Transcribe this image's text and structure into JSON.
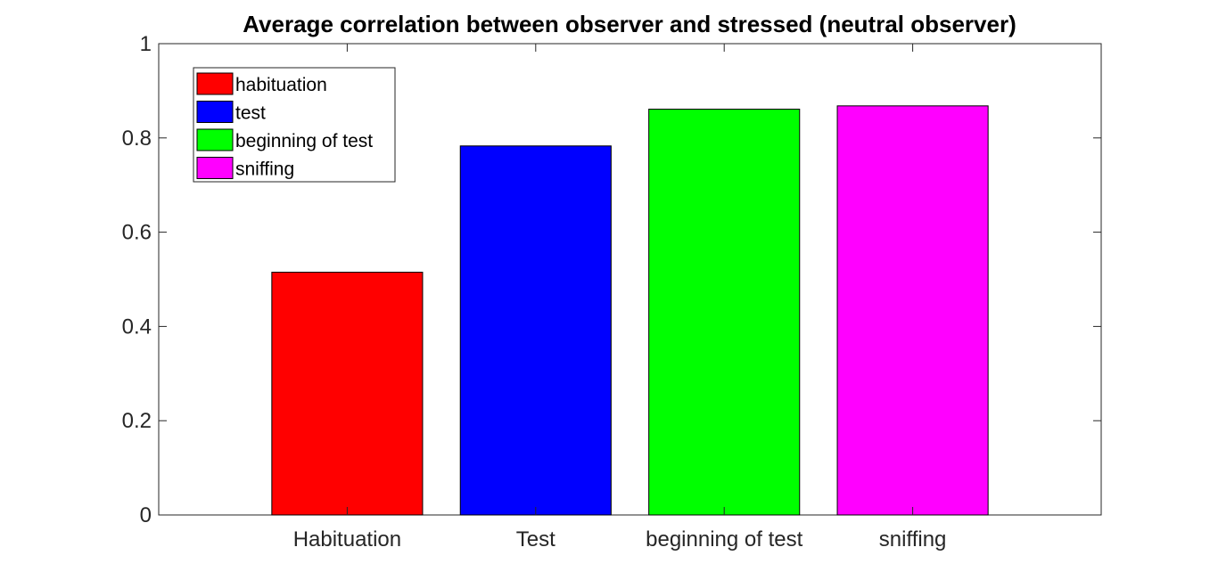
{
  "chart_data": {
    "type": "bar",
    "title": "Average correlation between observer and stressed (neutral observer)",
    "xlabel": "",
    "ylabel": "",
    "categories": [
      "Habituation",
      "Test",
      "beginning of test",
      "sniffing"
    ],
    "values": [
      0.515,
      0.783,
      0.861,
      0.868
    ],
    "colors": [
      "#ff0000",
      "#0000ff",
      "#00ff00",
      "#ff00ff"
    ],
    "ylim": [
      0,
      1
    ],
    "yticks": [
      0,
      0.2,
      0.4,
      0.6,
      0.8,
      1
    ],
    "ytick_labels": [
      "0",
      "0.2",
      "0.4",
      "0.6",
      "0.8",
      "1"
    ],
    "grid": false,
    "legend": {
      "placement": "top-left",
      "entries": [
        {
          "label": "habituation",
          "color": "#ff0000"
        },
        {
          "label": "test",
          "color": "#0000ff"
        },
        {
          "label": "beginning of test",
          "color": "#00ff00"
        },
        {
          "label": "sniffing",
          "color": "#ff00ff"
        }
      ]
    }
  }
}
